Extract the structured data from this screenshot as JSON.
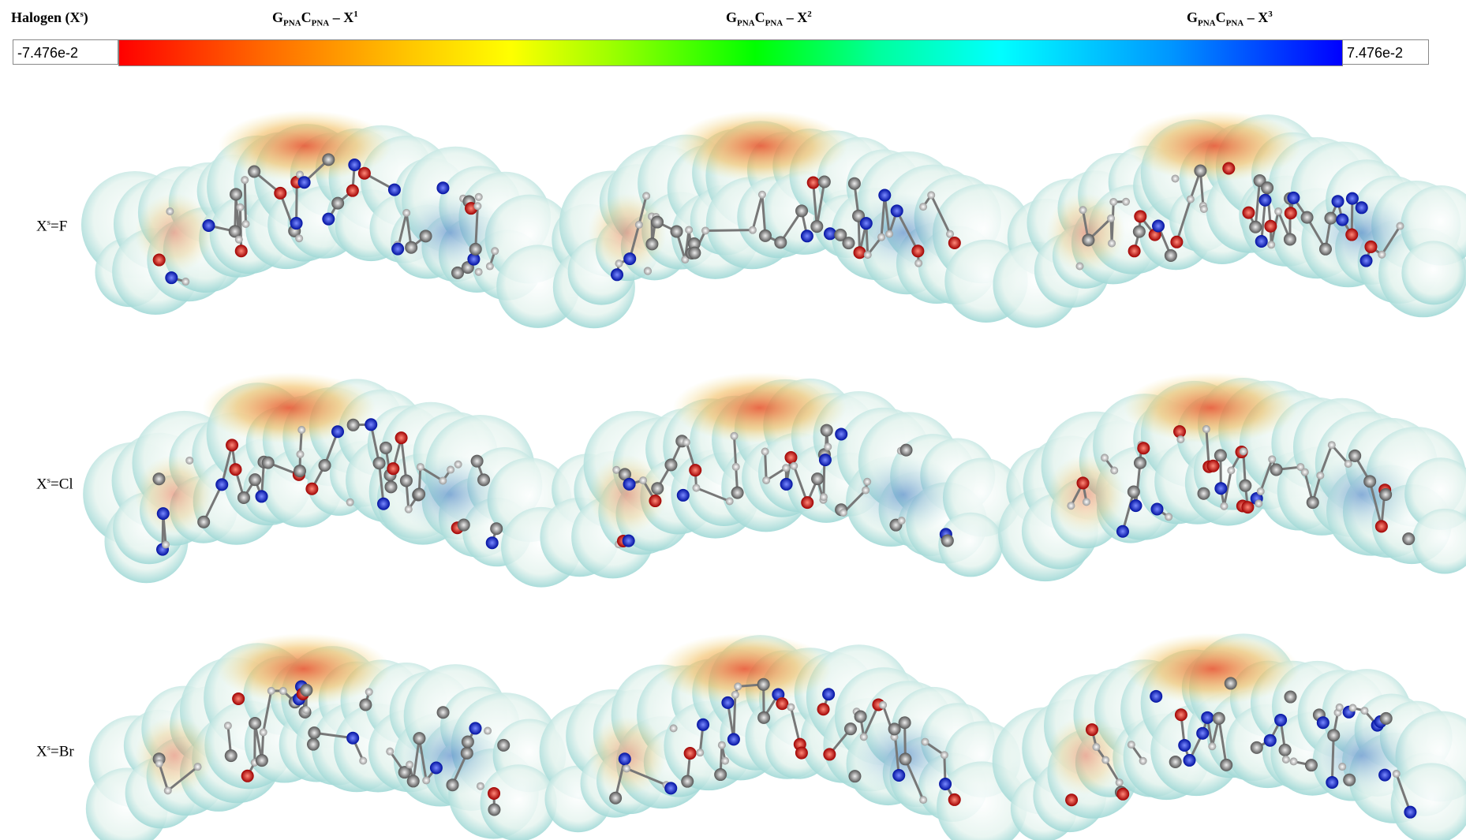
{
  "header": {
    "label": {
      "text": "Halogen (X",
      "sup": "s",
      "close": ")"
    },
    "columns": [
      {
        "a": "G",
        "a_sub": "PNA",
        "b": "C",
        "b_sub": "PNA",
        "c": " – X",
        "c_sup": "1"
      },
      {
        "a": "G",
        "a_sub": "PNA",
        "b": "C",
        "b_sub": "PNA",
        "c": " – X",
        "c_sup": "2"
      },
      {
        "a": "G",
        "a_sub": "PNA",
        "b": "C",
        "b_sub": "PNA",
        "c": " – X",
        "c_sup": "3"
      }
    ]
  },
  "colorbar": {
    "min_label": "-7.476e-2",
    "max_label": "7.476e-2"
  },
  "rows": [
    {
      "x": "X",
      "sup": "s",
      "rest": "=F"
    },
    {
      "x": "X",
      "sup": "s",
      "rest": "=Cl"
    },
    {
      "x": "X",
      "sup": "s",
      "rest": "=Br"
    }
  ]
}
